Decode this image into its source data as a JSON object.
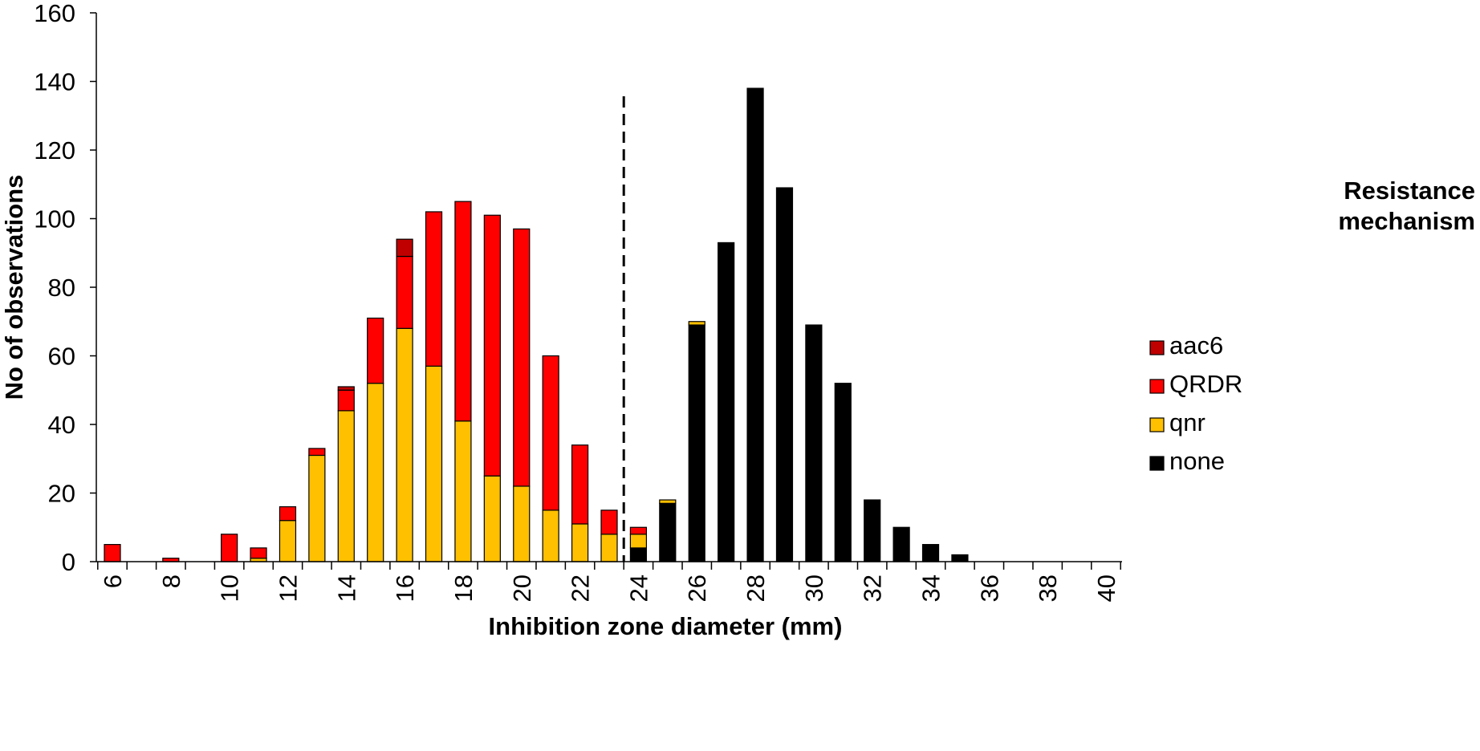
{
  "chart_data": {
    "type": "bar",
    "stacked": true,
    "xlabel": "Inhibition zone diameter (mm)",
    "ylabel": "No of observations",
    "ylim": [
      0,
      160
    ],
    "yticks": [
      "0",
      "20",
      "40",
      "60",
      "80",
      "100",
      "120",
      "140",
      "160"
    ],
    "xlim": [
      6,
      40
    ],
    "xticks": [
      "6",
      "8",
      "10",
      "12",
      "14",
      "16",
      "18",
      "20",
      "22",
      "24",
      "26",
      "28",
      "30",
      "32",
      "34",
      "36",
      "38",
      "40"
    ],
    "x": [
      6,
      8,
      10,
      11,
      12,
      13,
      14,
      15,
      16,
      17,
      18,
      19,
      20,
      21,
      22,
      23,
      24,
      25,
      26,
      27,
      28,
      29,
      30,
      31,
      32,
      33,
      34,
      35
    ],
    "breakpoint_x": 23.5,
    "grid": false,
    "legend": {
      "title_line1": "Resistance",
      "title_line2": "mechanism",
      "position": "right"
    },
    "series": [
      {
        "name": "none",
        "color": "#000000",
        "values": [
          0,
          0,
          0,
          0,
          0,
          0,
          0,
          0,
          0,
          0,
          0,
          0,
          0,
          0,
          0,
          0,
          4,
          17,
          69,
          93,
          138,
          109,
          69,
          52,
          18,
          10,
          5,
          2
        ]
      },
      {
        "name": "qnr",
        "color": "#FFC000",
        "values": [
          0,
          0,
          0,
          1,
          12,
          31,
          44,
          52,
          68,
          57,
          41,
          25,
          22,
          15,
          11,
          8,
          4,
          1,
          1,
          0,
          0,
          0,
          0,
          0,
          0,
          0,
          0,
          0
        ]
      },
      {
        "name": "QRDR",
        "color": "#FF0000",
        "values": [
          5,
          1,
          8,
          3,
          4,
          2,
          6,
          19,
          21,
          45,
          64,
          76,
          75,
          45,
          23,
          7,
          2,
          0,
          0,
          0,
          0,
          0,
          0,
          0,
          0,
          0,
          0,
          0
        ]
      },
      {
        "name": "aac6",
        "color": "#C00000",
        "values": [
          0,
          0,
          0,
          0,
          0,
          0,
          1,
          0,
          5,
          0,
          0,
          0,
          0,
          0,
          0,
          0,
          0,
          0,
          0,
          0,
          0,
          0,
          0,
          0,
          0,
          0,
          0,
          0
        ]
      }
    ]
  }
}
